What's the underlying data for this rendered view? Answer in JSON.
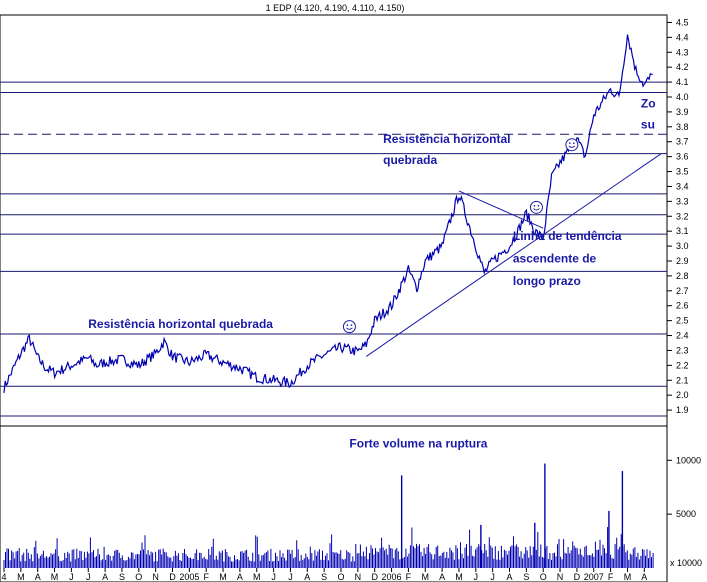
{
  "chart_data": {
    "type": "line",
    "title": "1 EDP (4.120, 4.190, 4.110, 4.150)",
    "price_axis": {
      "ylim": [
        1.8,
        4.55
      ],
      "ticks": [
        "1.9",
        "2.0",
        "2.1",
        "2.2",
        "2.3",
        "2.4",
        "2.5",
        "2.6",
        "2.7",
        "2.8",
        "2.9",
        "3.0",
        "3.1",
        "3.2",
        "3.3",
        "3.4",
        "3.5",
        "3.6",
        "3.7",
        "3.8",
        "3.9",
        "4.0",
        "4.1",
        "4.2",
        "4.3",
        "4.4",
        "4.5"
      ]
    },
    "volume_axis": {
      "ylim": [
        0,
        13000
      ],
      "ticks": [
        "5000",
        "10000"
      ],
      "scale_label": "x 10000"
    },
    "x_months": [
      "4",
      "M",
      "A",
      "M",
      "J",
      "J",
      "A",
      "S",
      "O",
      "N",
      "D",
      "2005",
      "F",
      "M",
      "A",
      "M",
      "J",
      "J",
      "A",
      "S",
      "O",
      "N",
      "D",
      "2006",
      "F",
      "M",
      "A",
      "M",
      "J",
      "J",
      "A",
      "S",
      "O",
      "N",
      "D",
      "2007",
      "F",
      "M",
      "A"
    ],
    "price_series": {
      "name": "EDP",
      "points": [
        [
          0,
          2.05
        ],
        [
          1,
          2.28
        ],
        [
          1.5,
          2.38
        ],
        [
          2,
          2.25
        ],
        [
          2.5,
          2.18
        ],
        [
          3,
          2.15
        ],
        [
          4,
          2.2
        ],
        [
          5,
          2.25
        ],
        [
          5.5,
          2.2
        ],
        [
          6,
          2.22
        ],
        [
          7,
          2.24
        ],
        [
          8,
          2.2
        ],
        [
          9,
          2.28
        ],
        [
          9.5,
          2.36
        ],
        [
          10,
          2.26
        ],
        [
          10.5,
          2.24
        ],
        [
          11,
          2.22
        ],
        [
          12,
          2.27
        ],
        [
          13,
          2.22
        ],
        [
          14,
          2.18
        ],
        [
          15,
          2.12
        ],
        [
          16,
          2.1
        ],
        [
          17,
          2.08
        ],
        [
          17.5,
          2.14
        ],
        [
          18,
          2.2
        ],
        [
          19,
          2.27
        ],
        [
          20,
          2.32
        ],
        [
          21,
          2.29
        ],
        [
          21.5,
          2.34
        ],
        [
          22,
          2.5
        ],
        [
          23,
          2.6
        ],
        [
          24,
          2.84
        ],
        [
          24.5,
          2.72
        ],
        [
          25,
          2.9
        ],
        [
          26,
          3.0
        ],
        [
          27,
          3.35
        ],
        [
          28,
          3.0
        ],
        [
          28.5,
          2.82
        ],
        [
          29,
          2.9
        ],
        [
          30,
          3.0
        ],
        [
          30.5,
          3.1
        ],
        [
          31,
          3.22
        ],
        [
          31.5,
          3.1
        ],
        [
          32,
          3.05
        ],
        [
          32.5,
          3.46
        ],
        [
          33,
          3.56
        ],
        [
          34,
          3.72
        ],
        [
          34.5,
          3.6
        ],
        [
          35,
          3.88
        ],
        [
          36,
          4.05
        ],
        [
          36.5,
          4.0
        ],
        [
          37,
          4.42
        ],
        [
          37.5,
          4.18
        ],
        [
          38,
          4.08
        ],
        [
          38.5,
          4.15
        ]
      ]
    },
    "horizontal_lines": [
      {
        "y": 1.86,
        "style": "solid"
      },
      {
        "y": 2.06,
        "style": "solid"
      },
      {
        "y": 2.41,
        "style": "solid"
      },
      {
        "y": 2.83,
        "style": "solid"
      },
      {
        "y": 3.08,
        "style": "solid"
      },
      {
        "y": 3.21,
        "style": "solid"
      },
      {
        "y": 3.35,
        "style": "solid"
      },
      {
        "y": 3.62,
        "style": "solid"
      },
      {
        "y": 3.75,
        "style": "dashed"
      },
      {
        "y": 4.03,
        "style": "solid"
      },
      {
        "y": 4.1,
        "style": "solid"
      }
    ],
    "trend_lines": [
      {
        "from": [
          21.5,
          2.26
        ],
        "to": [
          39,
          3.62
        ]
      },
      {
        "from": [
          27,
          3.37
        ],
        "to": [
          32,
          3.12
        ]
      }
    ],
    "annotations": [
      {
        "text": "Resistência horizontal quebrada",
        "at": [
          5,
          2.45
        ]
      },
      {
        "text": "Resistência horizontal",
        "at": [
          22.5,
          3.69
        ]
      },
      {
        "text": "quebrada",
        "at": [
          22.5,
          3.55
        ]
      },
      {
        "text": "Linha de tendência",
        "at": [
          30.2,
          3.04
        ]
      },
      {
        "text": "ascendente de",
        "at": [
          30.2,
          2.89
        ]
      },
      {
        "text": "longo prazo",
        "at": [
          30.2,
          2.74
        ]
      },
      {
        "text": "Zo",
        "at": [
          37.8,
          3.93
        ]
      },
      {
        "text": "su",
        "at": [
          37.8,
          3.79
        ]
      },
      {
        "text": "Forte volume na ruptura",
        "at": [
          20.5,
          11200
        ]
      }
    ],
    "markers": [
      {
        "at": [
          20.5,
          2.46
        ],
        "symbol": "smiley"
      },
      {
        "at": [
          31.6,
          3.26
        ],
        "symbol": "smiley"
      },
      {
        "at": [
          33.7,
          3.68
        ],
        "symbol": "smiley"
      }
    ],
    "volume_spikes": [
      {
        "x": 23.6,
        "v": 8600
      },
      {
        "x": 28.3,
        "v": 4000
      },
      {
        "x": 31.5,
        "v": 4200
      },
      {
        "x": 32.1,
        "v": 9700
      },
      {
        "x": 35.9,
        "v": 5300
      },
      {
        "x": 36.7,
        "v": 9000
      }
    ]
  }
}
